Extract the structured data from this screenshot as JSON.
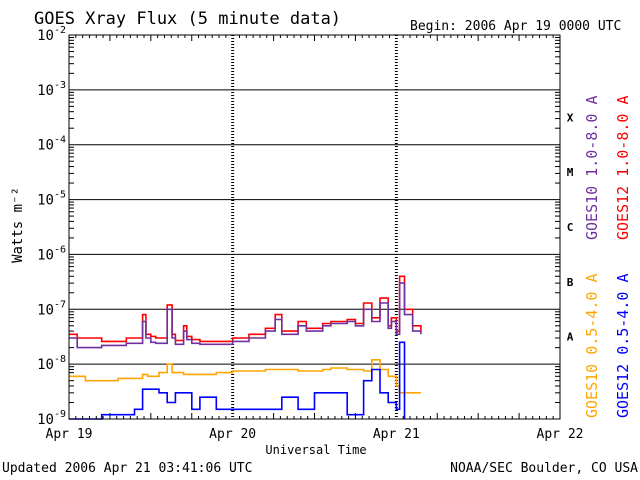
{
  "chart_data": {
    "type": "line",
    "title": "GOES Xray Flux (5 minute data)",
    "begin_text": "Begin:  2006 Apr 19 0000 UTC",
    "xlabel": "Universal Time",
    "ylabel": "Watts m⁻²",
    "yscale": "log",
    "ylim": [
      1e-09,
      0.01
    ],
    "x_range_days": [
      0,
      3
    ],
    "y_ticks": [
      {
        "mantissa": "10",
        "exp": "-9"
      },
      {
        "mantissa": "10",
        "exp": "-8"
      },
      {
        "mantissa": "10",
        "exp": "-7"
      },
      {
        "mantissa": "10",
        "exp": "-6"
      },
      {
        "mantissa": "10",
        "exp": "-5"
      },
      {
        "mantissa": "10",
        "exp": "-4"
      },
      {
        "mantissa": "10",
        "exp": "-3"
      },
      {
        "mantissa": "10",
        "exp": "-2"
      }
    ],
    "x_ticks": [
      "Apr 19",
      "Apr 20",
      "Apr 21",
      "Apr 22"
    ],
    "flare_classes": [
      {
        "label": "A",
        "lower": 1e-08
      },
      {
        "label": "B",
        "lower": 1e-07
      },
      {
        "label": "C",
        "lower": 1e-06
      },
      {
        "label": "M",
        "lower": 1e-05
      },
      {
        "label": "X",
        "lower": 0.0001
      }
    ],
    "grid": "horizontal lines at each decade",
    "legend_placement": "right side, vertical",
    "series": [
      {
        "name": "GOES12 1.0-8.0 A",
        "color": "#ff0000",
        "x": [
          0,
          0.05,
          0.12,
          0.2,
          0.35,
          0.45,
          0.47,
          0.5,
          0.53,
          0.6,
          0.63,
          0.65,
          0.7,
          0.72,
          0.75,
          0.8,
          0.85,
          0.93,
          1.0,
          1.1,
          1.2,
          1.26,
          1.3,
          1.4,
          1.45,
          1.55,
          1.6,
          1.7,
          1.75,
          1.8,
          1.85,
          1.9,
          1.95,
          1.97,
          2.0,
          2.02,
          2.05,
          2.1,
          2.15
        ],
        "y": [
          3.5e-08,
          3e-08,
          3e-08,
          2.6e-08,
          3e-08,
          8e-08,
          3.5e-08,
          3.2e-08,
          3e-08,
          1.2e-07,
          3.5e-08,
          2.7e-08,
          5e-08,
          3.2e-08,
          2.8e-08,
          2.6e-08,
          2.6e-08,
          2.6e-08,
          3e-08,
          3.5e-08,
          4.5e-08,
          8e-08,
          4e-08,
          6e-08,
          4.5e-08,
          5.5e-08,
          6e-08,
          6.5e-08,
          5.5e-08,
          1.3e-07,
          7e-08,
          1.6e-07,
          5e-08,
          7e-08,
          4e-08,
          4e-07,
          1e-07,
          5e-08,
          4e-08
        ]
      },
      {
        "name": "GOES10 1.0-8.0 A",
        "color": "#7030a0",
        "x": [
          0,
          0.05,
          0.12,
          0.2,
          0.35,
          0.45,
          0.47,
          0.5,
          0.53,
          0.6,
          0.63,
          0.65,
          0.7,
          0.72,
          0.75,
          0.8,
          0.85,
          0.93,
          1.0,
          1.1,
          1.2,
          1.26,
          1.3,
          1.4,
          1.45,
          1.55,
          1.6,
          1.7,
          1.75,
          1.8,
          1.85,
          1.9,
          1.95,
          1.97,
          2.0,
          2.02,
          2.05,
          2.1,
          2.15
        ],
        "y": [
          3e-08,
          2e-08,
          2e-08,
          2.2e-08,
          2.4e-08,
          6e-08,
          3e-08,
          2.5e-08,
          2.4e-08,
          1e-07,
          3e-08,
          2.3e-08,
          4e-08,
          2.8e-08,
          2.4e-08,
          2.3e-08,
          2.3e-08,
          2.3e-08,
          2.6e-08,
          3e-08,
          4e-08,
          6.5e-08,
          3.5e-08,
          5e-08,
          4e-08,
          5e-08,
          5.5e-08,
          6e-08,
          5e-08,
          1e-07,
          6e-08,
          1.3e-07,
          4.5e-08,
          6e-08,
          3.5e-08,
          3e-07,
          8e-08,
          4e-08,
          3.5e-08
        ]
      },
      {
        "name": "GOES10 0.5-4.0 A",
        "color": "#ffa500",
        "x": [
          0,
          0.1,
          0.3,
          0.45,
          0.48,
          0.55,
          0.6,
          0.63,
          0.7,
          0.8,
          0.9,
          1.0,
          1.2,
          1.4,
          1.55,
          1.6,
          1.7,
          1.8,
          1.85,
          1.9,
          1.95,
          2.0,
          2.02,
          2.1,
          2.15
        ],
        "y": [
          6e-09,
          5e-09,
          5.5e-09,
          6.5e-09,
          6e-09,
          7e-09,
          1e-08,
          7e-09,
          6.5e-09,
          6.5e-09,
          7e-09,
          7.5e-09,
          8e-09,
          7.5e-09,
          8e-09,
          8.5e-09,
          8e-09,
          7.5e-09,
          1.2e-08,
          8e-09,
          6e-09,
          4e-09,
          3e-09,
          3e-09,
          3e-09
        ]
      },
      {
        "name": "GOES12 0.5-4.0 A",
        "color": "#0000ff",
        "x": [
          0,
          0.2,
          0.4,
          0.45,
          0.55,
          0.6,
          0.65,
          0.75,
          0.8,
          0.9,
          1.0,
          1.1,
          1.2,
          1.3,
          1.4,
          1.5,
          1.6,
          1.7,
          1.8,
          1.85,
          1.9,
          1.95,
          2.0,
          2.02,
          2.05
        ],
        "y": [
          1e-09,
          1.2e-09,
          1.5e-09,
          3.5e-09,
          3e-09,
          2e-09,
          3e-09,
          1.5e-09,
          2.5e-09,
          1.5e-09,
          1.5e-09,
          1.5e-09,
          1.5e-09,
          2.5e-09,
          1.5e-09,
          3e-09,
          3e-09,
          1.2e-09,
          5e-09,
          8e-09,
          3e-09,
          2e-09,
          1.5e-09,
          2.5e-08,
          1e-09
        ]
      }
    ]
  },
  "footer": {
    "updated": "Updated 2006 Apr 21 03:41:06 UTC",
    "credit": "NOAA/SEC Boulder, CO USA"
  }
}
